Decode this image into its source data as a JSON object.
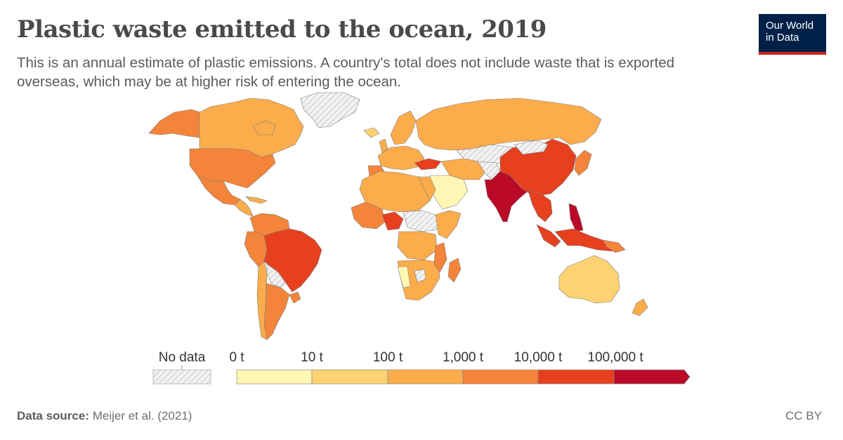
{
  "title": "Plastic waste emitted to the ocean, 2019",
  "subtitle": "This is an annual estimate of plastic emissions. A country's total does not include waste that is exported overseas, which may be at higher risk of entering the ocean.",
  "logo": {
    "line1": "Our World",
    "line2": "in Data",
    "bg_color": "#002147",
    "accent_color": "#ce261e"
  },
  "legend": {
    "no_data_label": "No data",
    "bins": [
      {
        "label": "0 t",
        "color": "#fff7b3"
      },
      {
        "label": "10 t",
        "color": "#fed272"
      },
      {
        "label": "100 t",
        "color": "#fcac4b"
      },
      {
        "label": "1,000 t",
        "color": "#f4843a"
      },
      {
        "label": "10,000 t",
        "color": "#e6401f"
      },
      {
        "label": "100,000 t",
        "color": "#bb0a28"
      }
    ]
  },
  "footer": {
    "source_label": "Data source:",
    "source": "Meijer et al. (2021)",
    "license": "CC BY"
  }
}
